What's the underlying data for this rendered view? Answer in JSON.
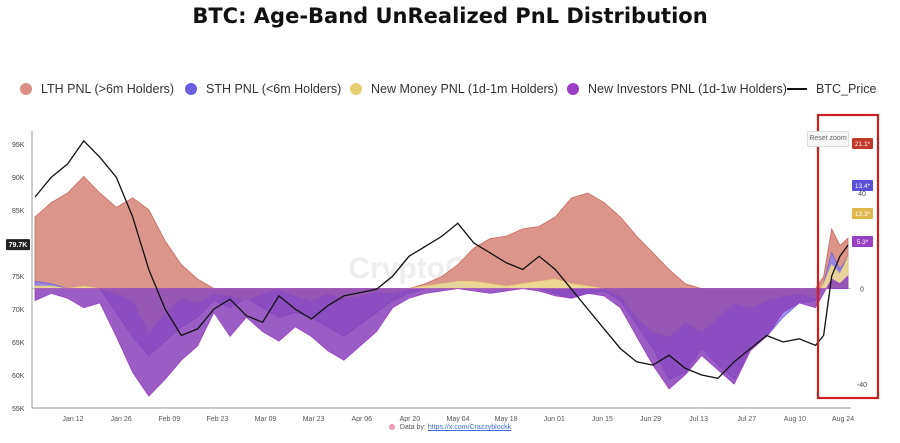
{
  "title": "BTC: Age-Band UnRealized PnL Distribution",
  "legend": {
    "lth": "LTH PNL (>6m Holders)",
    "sth": "STH PNL (<6m Holders)",
    "newmoney": "New Money PNL (1d-1m Holders)",
    "newinv": "New Investors PNL (1d-1w Holders)",
    "price": "BTC_Price"
  },
  "reset_zoom_label": "Reset zoom",
  "watermark": "CryptoQuant",
  "footer": {
    "prefix": "Data by:",
    "link": "https://x.com/Crazzyblockk"
  },
  "colors": {
    "lth": "#c96a63",
    "lth_fill": "#d98f84",
    "sth": "#6b5fe0",
    "sth_fill": "#8f86ec",
    "newmoney": "#e8cf72",
    "newmoney_fill": "#f0dd95",
    "newinv": "#9a3fc4",
    "newinv_fill": "#8a3fb8",
    "price": "#111111",
    "highlight_box": "#cc1f1f"
  },
  "chart_data": {
    "type": "area",
    "x_ticks": [
      "Jan 12",
      "Jan 26",
      "Feb 09",
      "Feb 23",
      "Mar 09",
      "Mar 23",
      "Apr 06",
      "Apr 20",
      "May 04",
      "May 18",
      "Jun 01",
      "Jun 15",
      "Jun 29",
      "Jul 13",
      "Jul 27",
      "Aug 10",
      "Aug 24"
    ],
    "x_range": [
      "Jan 01",
      "Aug 31"
    ],
    "left_axis": {
      "ticks": [
        "95K",
        "90K",
        "85K",
        "80K",
        "75K",
        "70K",
        "65K",
        "60K",
        "55K"
      ],
      "current_label": "79.7K",
      "range": [
        55000,
        97000
      ]
    },
    "right_axis": {
      "ticks": [
        "40",
        "0",
        "-40"
      ],
      "range": [
        -50,
        66
      ]
    },
    "end_labels": {
      "lth": "21.1*",
      "sth": "13.4*",
      "newmoney": "13.3*",
      "newinv": "5.3*"
    },
    "highlight_region": [
      "Aug 14",
      "Aug 31"
    ],
    "series": [
      {
        "name": "LTH PNL (>6m Holders)",
        "key": "lth",
        "axis": "right",
        "points": [
          [
            0,
            30
          ],
          [
            2,
            36
          ],
          [
            4,
            40
          ],
          [
            6,
            47
          ],
          [
            8,
            40
          ],
          [
            10,
            34
          ],
          [
            12,
            38
          ],
          [
            14,
            33
          ],
          [
            16,
            20
          ],
          [
            18,
            10
          ],
          [
            20,
            4
          ],
          [
            22,
            0
          ],
          [
            24,
            0
          ],
          [
            26,
            0
          ],
          [
            28,
            0
          ],
          [
            30,
            0
          ],
          [
            32,
            0
          ],
          [
            34,
            0
          ],
          [
            36,
            0
          ],
          [
            38,
            0
          ],
          [
            40,
            0
          ],
          [
            42,
            0
          ],
          [
            44,
            0
          ],
          [
            46,
            0
          ],
          [
            48,
            2
          ],
          [
            50,
            5
          ],
          [
            52,
            10
          ],
          [
            54,
            17
          ],
          [
            56,
            21
          ],
          [
            58,
            22
          ],
          [
            60,
            25
          ],
          [
            62,
            26
          ],
          [
            64,
            30
          ],
          [
            66,
            38
          ],
          [
            68,
            40
          ],
          [
            70,
            36
          ],
          [
            72,
            30
          ],
          [
            74,
            22
          ],
          [
            76,
            15
          ],
          [
            78,
            8
          ],
          [
            80,
            2
          ],
          [
            82,
            0
          ],
          [
            84,
            0
          ],
          [
            86,
            0
          ],
          [
            88,
            0
          ],
          [
            90,
            0
          ],
          [
            92,
            0
          ],
          [
            94,
            0
          ],
          [
            96,
            0
          ],
          [
            97,
            5
          ],
          [
            98,
            25
          ],
          [
            99,
            18
          ],
          [
            100,
            21.1
          ]
        ]
      },
      {
        "name": "STH PNL (<6m Holders)",
        "key": "sth",
        "axis": "right",
        "points": [
          [
            0,
            3
          ],
          [
            2,
            2
          ],
          [
            4,
            0
          ],
          [
            6,
            0
          ],
          [
            8,
            0
          ],
          [
            10,
            -10
          ],
          [
            12,
            -20
          ],
          [
            14,
            -28
          ],
          [
            16,
            -22
          ],
          [
            18,
            -16
          ],
          [
            20,
            -12
          ],
          [
            22,
            -5
          ],
          [
            24,
            -8
          ],
          [
            26,
            -4
          ],
          [
            28,
            -8
          ],
          [
            30,
            -12
          ],
          [
            32,
            -10
          ],
          [
            34,
            -12
          ],
          [
            36,
            -16
          ],
          [
            38,
            -20
          ],
          [
            40,
            -15
          ],
          [
            42,
            -10
          ],
          [
            44,
            -5
          ],
          [
            46,
            -2
          ],
          [
            48,
            0
          ],
          [
            50,
            2
          ],
          [
            52,
            3
          ],
          [
            54,
            0
          ],
          [
            56,
            0
          ],
          [
            58,
            0
          ],
          [
            60,
            0
          ],
          [
            62,
            0
          ],
          [
            64,
            -2
          ],
          [
            66,
            -4
          ],
          [
            68,
            -2
          ],
          [
            70,
            -1
          ],
          [
            72,
            -5
          ],
          [
            74,
            -15
          ],
          [
            76,
            -25
          ],
          [
            78,
            -38
          ],
          [
            80,
            -35
          ],
          [
            82,
            -25
          ],
          [
            84,
            -32
          ],
          [
            86,
            -38
          ],
          [
            88,
            -25
          ],
          [
            90,
            -20
          ],
          [
            92,
            -12
          ],
          [
            94,
            -6
          ],
          [
            96,
            -5
          ],
          [
            97,
            2
          ],
          [
            98,
            15
          ],
          [
            99,
            8
          ],
          [
            100,
            13.4
          ]
        ]
      },
      {
        "name": "New Money PNL (1d-1m Holders)",
        "key": "newmoney",
        "axis": "right",
        "points": [
          [
            0,
            1
          ],
          [
            2,
            1
          ],
          [
            4,
            0
          ],
          [
            6,
            1
          ],
          [
            8,
            0
          ],
          [
            10,
            -2
          ],
          [
            12,
            -5
          ],
          [
            14,
            -18
          ],
          [
            16,
            -10
          ],
          [
            18,
            -4
          ],
          [
            20,
            -6
          ],
          [
            22,
            -2
          ],
          [
            24,
            -3
          ],
          [
            26,
            -5
          ],
          [
            28,
            -2
          ],
          [
            30,
            0
          ],
          [
            32,
            -3
          ],
          [
            34,
            -5
          ],
          [
            36,
            -2
          ],
          [
            38,
            -4
          ],
          [
            40,
            -3
          ],
          [
            42,
            -1
          ],
          [
            44,
            -2
          ],
          [
            46,
            0
          ],
          [
            48,
            1
          ],
          [
            50,
            2
          ],
          [
            52,
            3
          ],
          [
            54,
            3
          ],
          [
            56,
            2
          ],
          [
            58,
            1
          ],
          [
            60,
            2
          ],
          [
            62,
            3
          ],
          [
            64,
            4
          ],
          [
            66,
            2
          ],
          [
            68,
            1
          ],
          [
            70,
            0
          ],
          [
            72,
            -3
          ],
          [
            74,
            -12
          ],
          [
            76,
            -18
          ],
          [
            78,
            -20
          ],
          [
            80,
            -14
          ],
          [
            82,
            -18
          ],
          [
            84,
            -12
          ],
          [
            86,
            -6
          ],
          [
            88,
            -8
          ],
          [
            90,
            -5
          ],
          [
            92,
            -3
          ],
          [
            94,
            -2
          ],
          [
            96,
            -4
          ],
          [
            97,
            2
          ],
          [
            98,
            10
          ],
          [
            99,
            6
          ],
          [
            100,
            13.3
          ]
        ]
      },
      {
        "name": "New Investors PNL (1d-1w Holders)",
        "key": "newinv",
        "axis": "right",
        "points": [
          [
            0,
            -5
          ],
          [
            2,
            -2
          ],
          [
            4,
            -4
          ],
          [
            6,
            -8
          ],
          [
            8,
            -6
          ],
          [
            10,
            -20
          ],
          [
            12,
            -35
          ],
          [
            14,
            -45
          ],
          [
            16,
            -38
          ],
          [
            18,
            -30
          ],
          [
            20,
            -24
          ],
          [
            22,
            -10
          ],
          [
            24,
            -20
          ],
          [
            26,
            -12
          ],
          [
            28,
            -18
          ],
          [
            30,
            -22
          ],
          [
            32,
            -16
          ],
          [
            34,
            -20
          ],
          [
            36,
            -26
          ],
          [
            38,
            -30
          ],
          [
            40,
            -24
          ],
          [
            42,
            -18
          ],
          [
            44,
            -8
          ],
          [
            46,
            -4
          ],
          [
            48,
            -2
          ],
          [
            50,
            -1
          ],
          [
            52,
            0
          ],
          [
            54,
            -1
          ],
          [
            56,
            -2
          ],
          [
            58,
            -1
          ],
          [
            60,
            0
          ],
          [
            62,
            -1
          ],
          [
            64,
            -3
          ],
          [
            66,
            -4
          ],
          [
            68,
            -2
          ],
          [
            70,
            -3
          ],
          [
            72,
            -8
          ],
          [
            74,
            -20
          ],
          [
            76,
            -32
          ],
          [
            78,
            -42
          ],
          [
            80,
            -36
          ],
          [
            82,
            -28
          ],
          [
            84,
            -34
          ],
          [
            86,
            -40
          ],
          [
            88,
            -26
          ],
          [
            90,
            -20
          ],
          [
            92,
            -10
          ],
          [
            94,
            -6
          ],
          [
            96,
            -8
          ],
          [
            97,
            -2
          ],
          [
            98,
            4
          ],
          [
            99,
            2
          ],
          [
            100,
            5.3
          ]
        ]
      },
      {
        "name": "BTC_Price",
        "key": "price",
        "axis": "left",
        "points": [
          [
            0,
            87000
          ],
          [
            2,
            90000
          ],
          [
            4,
            92000
          ],
          [
            6,
            95500
          ],
          [
            8,
            93000
          ],
          [
            10,
            90000
          ],
          [
            12,
            84000
          ],
          [
            14,
            76000
          ],
          [
            16,
            70000
          ],
          [
            18,
            66000
          ],
          [
            20,
            67000
          ],
          [
            22,
            70000
          ],
          [
            24,
            71500
          ],
          [
            26,
            69000
          ],
          [
            28,
            68000
          ],
          [
            30,
            72000
          ],
          [
            32,
            70000
          ],
          [
            34,
            68500
          ],
          [
            36,
            70500
          ],
          [
            38,
            72000
          ],
          [
            40,
            72500
          ],
          [
            42,
            73000
          ],
          [
            44,
            75000
          ],
          [
            46,
            78000
          ],
          [
            48,
            79500
          ],
          [
            50,
            81000
          ],
          [
            52,
            83000
          ],
          [
            54,
            80000
          ],
          [
            56,
            78500
          ],
          [
            58,
            77000
          ],
          [
            60,
            76000
          ],
          [
            62,
            78000
          ],
          [
            64,
            76000
          ],
          [
            66,
            73000
          ],
          [
            68,
            70000
          ],
          [
            70,
            67000
          ],
          [
            72,
            64000
          ],
          [
            74,
            62000
          ],
          [
            76,
            61500
          ],
          [
            78,
            63000
          ],
          [
            80,
            61000
          ],
          [
            82,
            60000
          ],
          [
            84,
            59500
          ],
          [
            86,
            62000
          ],
          [
            88,
            64000
          ],
          [
            90,
            66000
          ],
          [
            92,
            65000
          ],
          [
            94,
            65500
          ],
          [
            96,
            64500
          ],
          [
            97,
            66000
          ],
          [
            98,
            75000
          ],
          [
            99,
            78000
          ],
          [
            100,
            79700
          ]
        ]
      }
    ]
  }
}
